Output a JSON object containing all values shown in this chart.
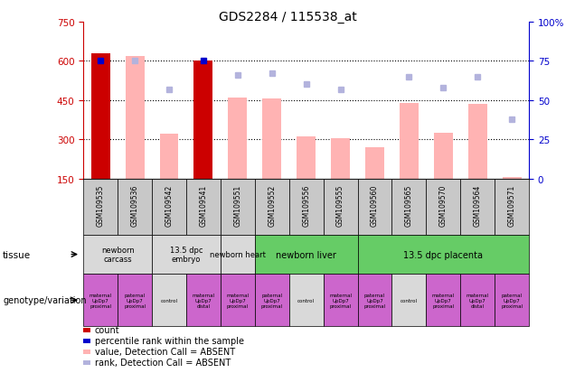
{
  "title": "GDS2284 / 115538_at",
  "gsm_labels": [
    "GSM109535",
    "GSM109536",
    "GSM109542",
    "GSM109541",
    "GSM109551",
    "GSM109552",
    "GSM109556",
    "GSM109555",
    "GSM109560",
    "GSM109565",
    "GSM109570",
    "GSM109564",
    "GSM109571"
  ],
  "bar_values": [
    630,
    620,
    320,
    600,
    460,
    455,
    310,
    305,
    270,
    440,
    325,
    435,
    155
  ],
  "bar_is_present": [
    true,
    false,
    false,
    true,
    false,
    false,
    false,
    false,
    false,
    false,
    false,
    false,
    false
  ],
  "rank_values": [
    75,
    75,
    57,
    75,
    66,
    67,
    60,
    57,
    null,
    65,
    58,
    65,
    38
  ],
  "rank_is_present": [
    true,
    false,
    false,
    true,
    false,
    false,
    false,
    false,
    false,
    false,
    false,
    false,
    false
  ],
  "ylim_left": [
    150,
    750
  ],
  "ylim_right": [
    0,
    100
  ],
  "yticks_left": [
    150,
    300,
    450,
    600,
    750
  ],
  "yticks_right": [
    0,
    25,
    50,
    75,
    100
  ],
  "bar_width": 0.55,
  "color_bar_present": "#cc0000",
  "color_bar_absent": "#ffb3b3",
  "color_rank_present": "#0000cc",
  "color_rank_absent": "#b3b3dd",
  "tissue_groups": [
    {
      "label": "newborn\ncarcass",
      "start": 0,
      "end": 2,
      "color": "#d9d9d9"
    },
    {
      "label": "13.5 dpc\nembryo",
      "start": 2,
      "end": 4,
      "color": "#d9d9d9"
    },
    {
      "label": "newborn heart",
      "start": 4,
      "end": 5,
      "color": "#d9d9d9"
    },
    {
      "label": "newborn liver",
      "start": 5,
      "end": 8,
      "color": "#66cc66"
    },
    {
      "label": "13.5 dpc placenta",
      "start": 8,
      "end": 13,
      "color": "#66cc66"
    }
  ],
  "genotype_labels": [
    {
      "label": "maternal\nUpDp7\nproximal",
      "color": "#cc66cc"
    },
    {
      "label": "paternal\nUpDp7\nproximal",
      "color": "#cc66cc"
    },
    {
      "label": "control",
      "color": "#d9d9d9"
    },
    {
      "label": "maternal\nUpDp7\ndistal",
      "color": "#cc66cc"
    },
    {
      "label": "maternal\nUpDp7\nproximal",
      "color": "#cc66cc"
    },
    {
      "label": "paternal\nUpDp7\nproximal",
      "color": "#cc66cc"
    },
    {
      "label": "control",
      "color": "#d9d9d9"
    },
    {
      "label": "maternal\nUpDp7\nproximal",
      "color": "#cc66cc"
    },
    {
      "label": "paternal\nUpDp7\nproximal",
      "color": "#cc66cc"
    },
    {
      "label": "control",
      "color": "#d9d9d9"
    },
    {
      "label": "maternal\nUpDp7\nproximal",
      "color": "#cc66cc"
    },
    {
      "label": "maternal\nUpDp7\ndistal",
      "color": "#cc66cc"
    },
    {
      "label": "paternal\nUpDp7\nproximal",
      "color": "#cc66cc"
    }
  ],
  "axis_color_left": "#cc0000",
  "axis_color_right": "#0000cc",
  "gsm_bg_color": "#c8c8c8",
  "legend_items": [
    {
      "label": "count",
      "color": "#cc0000",
      "shape": "square"
    },
    {
      "label": "percentile rank within the sample",
      "color": "#0000cc",
      "shape": "square"
    },
    {
      "label": "value, Detection Call = ABSENT",
      "color": "#ffb3b3",
      "shape": "square"
    },
    {
      "label": "rank, Detection Call = ABSENT",
      "color": "#b3b3dd",
      "shape": "square"
    }
  ]
}
